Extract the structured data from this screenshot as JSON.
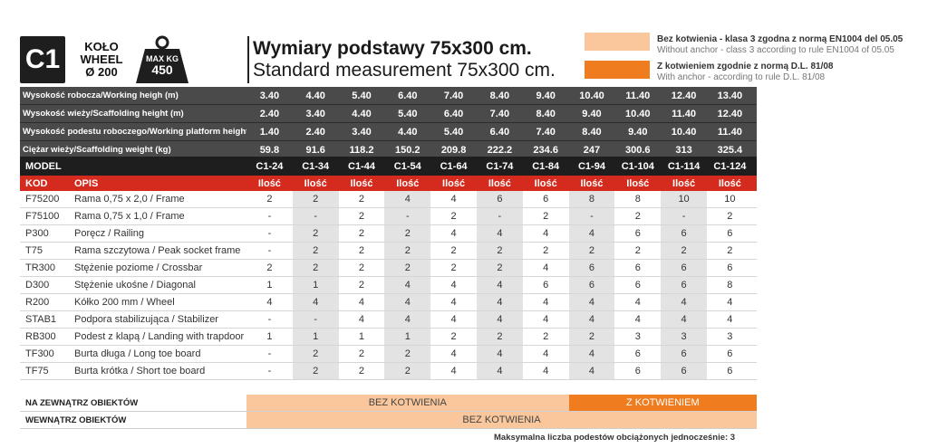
{
  "header": {
    "badge": "C1",
    "wheel_lines": [
      "KOŁO",
      "WHEEL",
      "Ø 200"
    ],
    "max_kg_label": "MAX KG",
    "max_kg_value": "450",
    "title_pl": "Wymiary podstawy 75x300 cm.",
    "title_en": "Standard measurement 75x300 cm."
  },
  "legend": [
    {
      "color": "#f9c79b",
      "line1": "Bez kotwienia - klasa 3 zgodna z normą EN1004 del 05.05",
      "line2": "Without anchor - class 3 according to rule EN1004 of 05.05"
    },
    {
      "color": "#ef7d1f",
      "line1": "Z kotwieniem zgodnie z normą D.L. 81/08",
      "line2": "With anchor - according to rule D.L. 81/08"
    }
  ],
  "specs": [
    {
      "label": "Wysokość robocza/Working heigh (m)",
      "values": [
        "3.40",
        "4.40",
        "5.40",
        "6.40",
        "7.40",
        "8.40",
        "9.40",
        "10.40",
        "11.40",
        "12.40",
        "13.40"
      ]
    },
    {
      "label": "Wysokość wieży/Scaffolding height (m)",
      "values": [
        "2.40",
        "3.40",
        "4.40",
        "5.40",
        "6.40",
        "7.40",
        "8.40",
        "9.40",
        "10.40",
        "11.40",
        "12.40"
      ]
    },
    {
      "label": "Wysokość podestu roboczego/Working platform height (m)",
      "values": [
        "1.40",
        "2.40",
        "3.40",
        "4.40",
        "5.40",
        "6.40",
        "7.40",
        "8.40",
        "9.40",
        "10.40",
        "11.40"
      ]
    },
    {
      "label": "Ciężar wieży/Scaffolding weight (kg)",
      "values": [
        "59.8",
        "91.6",
        "118.2",
        "150.2",
        "209.8",
        "222.2",
        "234.6",
        "247",
        "300.6",
        "313",
        "325.4"
      ]
    }
  ],
  "model": {
    "label": "MODEL",
    "codes": [
      "C1-24",
      "C1-34",
      "C1-44",
      "C1-54",
      "C1-64",
      "C1-74",
      "C1-84",
      "C1-94",
      "C1-104",
      "C1-114",
      "C1-124"
    ]
  },
  "kod_header": {
    "kod": "KOD",
    "opis": "OPIS",
    "qty": "Ilość"
  },
  "items": [
    {
      "kod": "F75200",
      "opis": "Rama 0,75 x 2,0 / Frame",
      "values": [
        "2",
        "2",
        "2",
        "4",
        "4",
        "6",
        "6",
        "8",
        "8",
        "10",
        "10"
      ]
    },
    {
      "kod": "F75100",
      "opis": "Rama 0,75 x 1,0 / Frame",
      "values": [
        "-",
        "-",
        "2",
        "-",
        "2",
        "-",
        "2",
        "-",
        "2",
        "-",
        "2"
      ]
    },
    {
      "kod": "P300",
      "opis": "Poręcz / Railing",
      "values": [
        "-",
        "2",
        "2",
        "2",
        "4",
        "4",
        "4",
        "4",
        "6",
        "6",
        "6"
      ]
    },
    {
      "kod": "T75",
      "opis": "Rama szczytowa / Peak socket frame",
      "values": [
        "-",
        "2",
        "2",
        "2",
        "2",
        "2",
        "2",
        "2",
        "2",
        "2",
        "2"
      ]
    },
    {
      "kod": "TR300",
      "opis": "Stężenie poziome / Crossbar",
      "values": [
        "2",
        "2",
        "2",
        "2",
        "2",
        "2",
        "4",
        "6",
        "6",
        "6",
        "6"
      ]
    },
    {
      "kod": "D300",
      "opis": "Stężenie ukośne / Diagonal",
      "values": [
        "1",
        "1",
        "2",
        "4",
        "4",
        "4",
        "6",
        "6",
        "6",
        "6",
        "8"
      ]
    },
    {
      "kod": "R200",
      "opis": "Kółko 200 mm / Wheel",
      "values": [
        "4",
        "4",
        "4",
        "4",
        "4",
        "4",
        "4",
        "4",
        "4",
        "4",
        "4"
      ]
    },
    {
      "kod": "STAB1",
      "opis": "Podpora stabilizująca / Stabilizer",
      "values": [
        "-",
        "-",
        "4",
        "4",
        "4",
        "4",
        "4",
        "4",
        "4",
        "4",
        "4"
      ]
    },
    {
      "kod": "RB300",
      "opis": "Podest z klapą / Landing with trapdoor",
      "values": [
        "1",
        "1",
        "1",
        "1",
        "2",
        "2",
        "2",
        "2",
        "3",
        "3",
        "3"
      ]
    },
    {
      "kod": "TF300",
      "opis": "Burta długa / Long toe board",
      "values": [
        "-",
        "2",
        "2",
        "2",
        "4",
        "4",
        "4",
        "4",
        "6",
        "6",
        "6"
      ]
    },
    {
      "kod": "TF75",
      "opis": "Burta krótka / Short toe board",
      "values": [
        "-",
        "2",
        "2",
        "2",
        "4",
        "4",
        "4",
        "4",
        "6",
        "6",
        "6"
      ]
    }
  ],
  "footer": {
    "outside_label": "NA ZEWNĄTRZ OBIEKTÓW",
    "outside_light": "BEZ KOTWIENIA",
    "outside_dark": "Z KOTWIENIEM",
    "inside_label": "WEWNĄTRZ OBIEKTÓW",
    "inside_light": "BEZ KOTWIENIA",
    "note": "Maksymalna liczba podestów obciążonych jednocześnie: 3"
  },
  "colors": {
    "light_orange": "#f9c79b",
    "dark_orange": "#ef7d1f",
    "red": "#d52b1e",
    "dark": "#1e1e1e",
    "grey": "#4a4a4a"
  }
}
